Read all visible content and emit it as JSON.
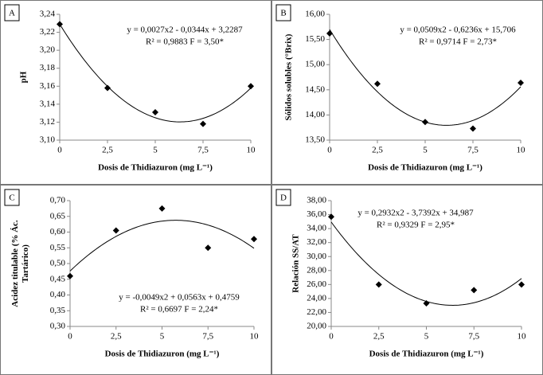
{
  "chart_data": [
    {
      "type": "scatter",
      "panel_label": "A",
      "ylabel": [
        "pH"
      ],
      "xlabel": "Dosis de Thidiazuron (mg L⁻¹)",
      "annotations": [
        "y = 0,0027x2 - 0,0344x + 3,2287",
        "R² = 0,9883 F = 3,50*"
      ],
      "x": [
        0,
        2.5,
        5,
        7.5,
        10
      ],
      "values": [
        3.229,
        3.158,
        3.131,
        3.118,
        3.16
      ],
      "color": "#000000",
      "fit_degree": 2,
      "xlim": [
        0,
        10
      ],
      "xticks": [
        0,
        {
          "value": 2.5,
          "label": "2,5"
        },
        5,
        {
          "value": 7.5,
          "label": "7,5"
        },
        10
      ],
      "ylim": [
        3.1,
        3.24
      ],
      "yticks": [
        {
          "value": 3.1,
          "label": "3,10"
        },
        {
          "value": 3.12,
          "label": "3,12"
        },
        {
          "value": 3.14,
          "label": "3,14"
        },
        {
          "value": 3.16,
          "label": "3,16"
        },
        {
          "value": 3.18,
          "label": "3,18"
        },
        {
          "value": 3.2,
          "label": "3,20"
        },
        {
          "value": 3.22,
          "label": "3,22"
        },
        {
          "value": 3.24,
          "label": "3,24"
        }
      ]
    },
    {
      "type": "scatter",
      "panel_label": "B",
      "ylabel": [
        "Sólidos solubles (°Brix)"
      ],
      "xlabel": "Dosis de Thidiazuron (mg L⁻¹)",
      "annotations": [
        "y = 0,0509x2 - 0,6236x + 15,706",
        "R² = 0,9714 F = 2,73*"
      ],
      "x": [
        0,
        2.5,
        5,
        7.5,
        10
      ],
      "values": [
        15.62,
        14.62,
        13.86,
        13.73,
        14.64
      ],
      "color": "#000000",
      "fit_degree": 2,
      "xlim": [
        0,
        10
      ],
      "xticks": [
        0,
        {
          "value": 2.5,
          "label": "2,5"
        },
        5,
        {
          "value": 7.5,
          "label": "7,5"
        },
        10
      ],
      "ylim": [
        13.5,
        16
      ],
      "yticks": [
        {
          "value": 13.5,
          "label": "13,50"
        },
        {
          "value": 14,
          "label": "14,00"
        },
        {
          "value": 14.5,
          "label": "14,50"
        },
        {
          "value": 15,
          "label": "15,00"
        },
        {
          "value": 15.5,
          "label": "15,50"
        },
        {
          "value": 16,
          "label": "16,00"
        }
      ]
    },
    {
      "type": "scatter",
      "panel_label": "C",
      "ylabel": [
        "Acidez titulable (% Ác.",
        "Tartárico)"
      ],
      "xlabel": "Dosis de Thidiazuron (mg L⁻¹)",
      "annotations": [
        "y = -0,0049x2 + 0,0563x + 0,4759",
        "R² = 0,6697 F = 2,24*"
      ],
      "x": [
        0,
        2.5,
        5,
        7.5,
        10
      ],
      "values": [
        0.46,
        0.605,
        0.675,
        0.55,
        0.578
      ],
      "color": "#000000",
      "fit_degree": 2,
      "xlim": [
        0,
        10
      ],
      "xticks": [
        0,
        {
          "value": 2.5,
          "label": "2,5"
        },
        5,
        {
          "value": 7.5,
          "label": "7,5"
        },
        10
      ],
      "ylim": [
        0.3,
        0.7
      ],
      "yticks": [
        {
          "value": 0.3,
          "label": "0,30"
        },
        {
          "value": 0.35,
          "label": "0,35"
        },
        {
          "value": 0.4,
          "label": "0,40"
        },
        {
          "value": 0.45,
          "label": "0,45"
        },
        {
          "value": 0.5,
          "label": "0,50"
        },
        {
          "value": 0.55,
          "label": "0,55"
        },
        {
          "value": 0.6,
          "label": "0,60"
        },
        {
          "value": 0.65,
          "label": "0,65"
        },
        {
          "value": 0.7,
          "label": "0,70"
        }
      ]
    },
    {
      "type": "scatter",
      "panel_label": "D",
      "ylabel": [
        "Relación SS/AT"
      ],
      "xlabel": "Dosis de Thidiazuron (mg L⁻¹)",
      "annotations": [
        "y = 0,2932x2 - 3,7392x + 34,987",
        "R² = 0,9329 F = 2,95*"
      ],
      "x": [
        0,
        2.5,
        5,
        7.5,
        10
      ],
      "values": [
        35.7,
        26.0,
        23.3,
        25.2,
        26.0
      ],
      "color": "#000000",
      "fit_degree": 2,
      "xlim": [
        0,
        10
      ],
      "xticks": [
        0,
        {
          "value": 2.5,
          "label": "2,5"
        },
        5,
        {
          "value": 7.5,
          "label": "7,5"
        },
        10
      ],
      "ylim": [
        20,
        38
      ],
      "yticks": [
        {
          "value": 20,
          "label": "20,00"
        },
        {
          "value": 22,
          "label": "22,00"
        },
        {
          "value": 24,
          "label": "24,00"
        },
        {
          "value": 26,
          "label": "26,00"
        },
        {
          "value": 28,
          "label": "28,00"
        },
        {
          "value": 30,
          "label": "30,00"
        },
        {
          "value": 32,
          "label": "32,00"
        },
        {
          "value": 34,
          "label": "34,00"
        },
        {
          "value": 36,
          "label": "36,00"
        },
        {
          "value": 38,
          "label": "38,00"
        }
      ]
    }
  ]
}
